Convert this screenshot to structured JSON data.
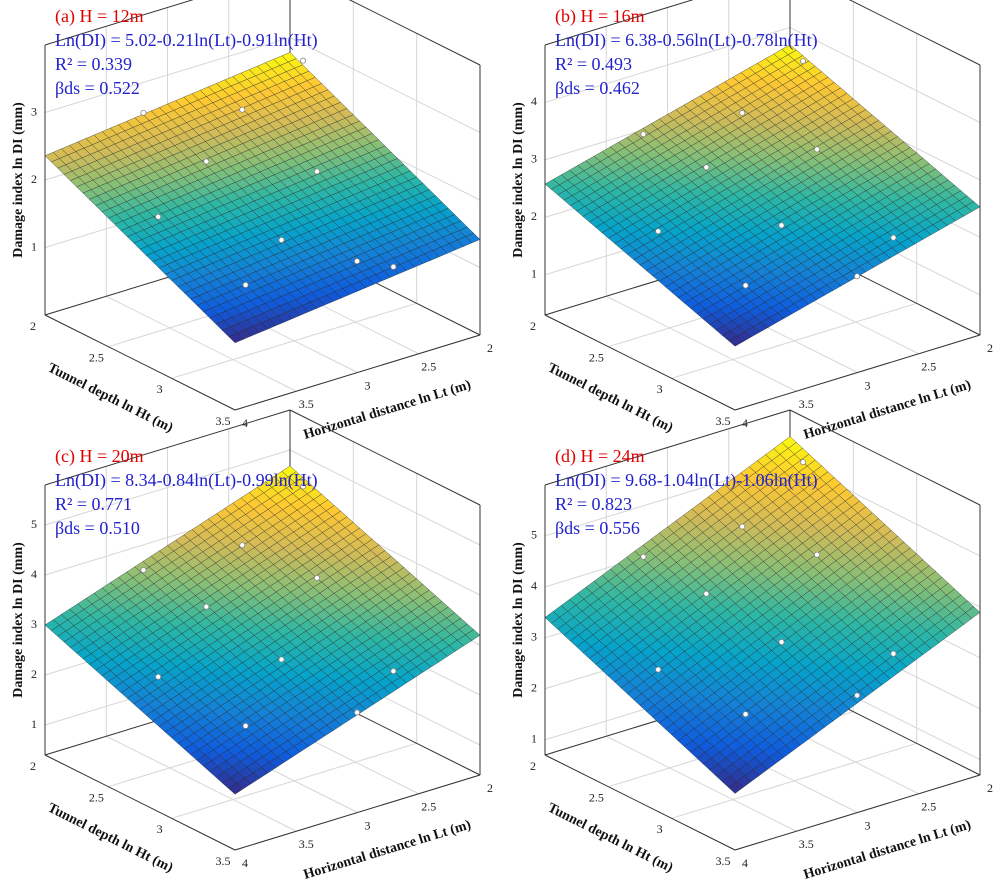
{
  "chart_data": [
    {
      "type": "surface3d",
      "title": "(a) H = 12m",
      "equation": "Ln(DI) = 5.02-0.21ln(Lt)-0.91ln(Ht)",
      "r2": "R² = 0.339",
      "beta": "βds = 0.522",
      "surface": {
        "intercept": 5.02,
        "lt_coef": -0.21,
        "ht_coef": -0.91
      },
      "xlabel": "Horizontal distance ln Lt (m)",
      "ylabel": "Tunnel depth ln Ht (m)",
      "zlabel": "Damage index ln DI (mm)",
      "xlim": [
        2,
        4
      ],
      "xticks": [
        2,
        2.5,
        3,
        3.5,
        4
      ],
      "ylim": [
        2,
        3.5
      ],
      "yticks": [
        2,
        2.5,
        3,
        3.5
      ],
      "zlim": [
        0,
        4
      ],
      "zticks": [
        1,
        2,
        3
      ],
      "grid": true,
      "points": {
        "lt": [
          2.1,
          2.4,
          2.7,
          3.0,
          3.2,
          3.5,
          3.8,
          2.5,
          3.3,
          2.9
        ],
        "ht": [
          2.2,
          2.6,
          2.3,
          2.9,
          2.5,
          3.1,
          2.7,
          3.3,
          2.1,
          3.4
        ],
        "di": [
          2.9,
          1.8,
          2.6,
          1.4,
          2.3,
          1.2,
          2.0,
          1.1,
          2.7,
          1.5
        ]
      }
    },
    {
      "type": "surface3d",
      "title": "(b) H = 16m",
      "equation": "Ln(DI) = 6.38-0.56ln(Lt)-0.78ln(Ht)",
      "r2": "R² = 0.493",
      "beta": "βds = 0.462",
      "surface": {
        "intercept": 6.38,
        "lt_coef": -0.56,
        "ht_coef": -0.78
      },
      "xlabel": "Horizontal distance ln Lt (m)",
      "ylabel": "Tunnel depth ln Ht (m)",
      "zlabel": "Damage index ln DI (mm)",
      "xlim": [
        2,
        4
      ],
      "xticks": [
        2,
        2.5,
        3,
        3.5,
        4
      ],
      "ylim": [
        2,
        3.5
      ],
      "yticks": [
        2,
        2.5,
        3,
        3.5
      ],
      "zlim": [
        0.3,
        5
      ],
      "zticks": [
        1,
        2,
        3,
        4
      ],
      "grid": true,
      "points": {
        "lt": [
          2.1,
          2.4,
          2.7,
          3.0,
          3.2,
          3.5,
          3.8,
          2.5,
          3.3,
          2.9
        ],
        "ht": [
          2.2,
          2.6,
          2.3,
          2.9,
          2.5,
          3.1,
          2.7,
          3.3,
          2.1,
          3.4
        ],
        "di": [
          3.7,
          2.8,
          3.3,
          2.2,
          2.9,
          1.7,
          2.4,
          2.1,
          3.1,
          1.8
        ]
      }
    },
    {
      "type": "surface3d",
      "title": "(c) H = 20m",
      "equation": "Ln(DI) = 8.34-0.84ln(Lt)-0.99ln(Ht)",
      "r2": "R² = 0.771",
      "beta": "βds = 0.510",
      "surface": {
        "intercept": 8.34,
        "lt_coef": -0.84,
        "ht_coef": -0.99
      },
      "xlabel": "Horizontal distance ln Lt (m)",
      "ylabel": "Tunnel depth ln Ht (m)",
      "zlabel": "Damage index ln DI (mm)",
      "xlim": [
        2,
        4
      ],
      "xticks": [
        2,
        2.5,
        3,
        3.5,
        4
      ],
      "ylim": [
        2,
        3.5
      ],
      "yticks": [
        2,
        2.5,
        3,
        3.5
      ],
      "zlim": [
        0.4,
        5.8
      ],
      "zticks": [
        1,
        2,
        3,
        4,
        5
      ],
      "grid": true,
      "points": {
        "lt": [
          2.1,
          2.4,
          2.7,
          3.0,
          3.2,
          3.5,
          3.8,
          2.5,
          3.3,
          2.9
        ],
        "ht": [
          2.2,
          2.6,
          2.3,
          2.9,
          2.5,
          3.1,
          2.7,
          3.3,
          2.1,
          3.4
        ],
        "di": [
          4.6,
          3.5,
          4.0,
          2.7,
          3.4,
          2.0,
          2.7,
          2.6,
          3.7,
          2.2
        ]
      }
    },
    {
      "type": "surface3d",
      "title": "(d) H = 24m",
      "equation": "Ln(DI) = 9.68-1.04ln(Lt)-1.06ln(Ht)",
      "r2": "R² = 0.823",
      "beta": "βds = 0.556",
      "surface": {
        "intercept": 9.68,
        "lt_coef": -1.04,
        "ht_coef": -1.06
      },
      "xlabel": "Horizontal distance ln Lt (m)",
      "ylabel": "Tunnel depth ln Ht (m)",
      "zlabel": "Damage index ln DI (mm)",
      "xlim": [
        2,
        4
      ],
      "xticks": [
        2,
        2.5,
        3,
        3.5,
        4
      ],
      "ylim": [
        2,
        3.5
      ],
      "yticks": [
        2,
        2.5,
        3,
        3.5
      ],
      "zlim": [
        0.7,
        6
      ],
      "zticks": [
        1,
        2,
        3,
        4,
        5
      ],
      "grid": true,
      "points": {
        "lt": [
          2.1,
          2.4,
          2.7,
          3.0,
          3.2,
          3.5,
          3.8,
          2.5,
          3.3,
          2.9
        ],
        "ht": [
          2.2,
          2.6,
          2.3,
          2.9,
          2.5,
          3.1,
          2.7,
          3.3,
          2.1,
          3.4
        ],
        "di": [
          5.3,
          4.2,
          4.6,
          3.3,
          3.9,
          2.5,
          3.1,
          3.2,
          4.2,
          2.8
        ]
      }
    }
  ]
}
